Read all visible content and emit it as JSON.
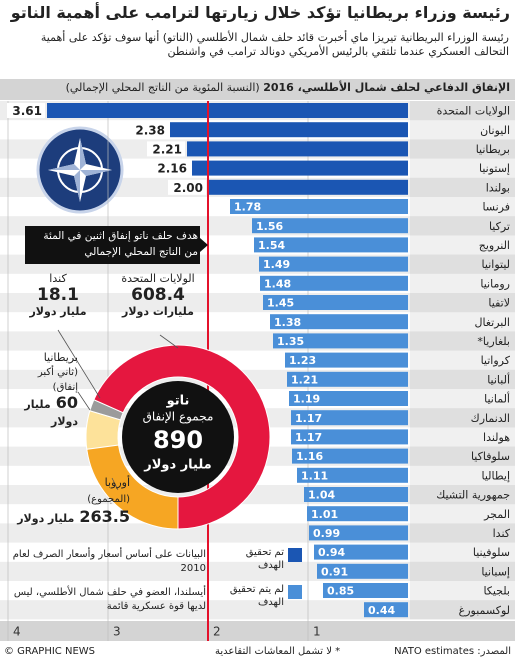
{
  "title": "رئيسة وزراء بريطانيا تؤكد خلال زيارتها لترامب على أهمية الناتو",
  "subtitle": "رئيسة الوزراء البريطانية تيريزا ماي أخبرت قائد حلف شمال الأطلسي (الناتو) أنها سوف تؤكد على أهمية التحالف العسكري عندما تلتقي بالرئيس الأمريكي دونالد ترامب في واشنطن",
  "notes": [
    "البيانات على أساس أسعار وأسعار الصرف لعام 2010",
    "أيسلندا، العضو في حلف شمال الأطلسي، ليس لديها قوة عسكرية قائمة"
  ],
  "footnote": "* لا تشمل المعاشات التقاعدية",
  "source": "المصدر: NATO estimates",
  "credit": "© GRAPHIC NEWS",
  "chart_data": [
    {
      "type": "bar",
      "orientation": "horizontal",
      "title": "الإنفاق الدفاعي لحلف شمال الأطلسي، 2016",
      "subtitle": "(النسبة المئوية من الناتج المحلي الإجمالي)",
      "categories": [
        "الولايات المتحدة",
        "اليونان",
        "بريطانيا",
        "إستونيا",
        "بولندا",
        "فرنسا",
        "تركيا",
        "النرويج",
        "ليتوانيا",
        "رومانيا",
        "لاتفيا",
        "البرتغال",
        "بلغاريا*",
        "كرواتيا",
        "ألبانيا",
        "ألمانيا",
        "الدنمارك",
        "هولندا",
        "سلوفاكيا",
        "إيطاليا",
        "جمهورية التشيك",
        "المجر",
        "كندا",
        "سلوفينيا",
        "إسبانيا",
        "بلجيكا",
        "لوكسمبورغ"
      ],
      "values": [
        3.61,
        2.38,
        2.21,
        2.16,
        2,
        1.78,
        1.56,
        1.54,
        1.49,
        1.48,
        1.45,
        1.38,
        1.35,
        1.23,
        1.21,
        1.19,
        1.17,
        1.17,
        1.16,
        1.11,
        1.04,
        1.01,
        0.99,
        0.94,
        0.91,
        0.85,
        0.44
      ],
      "value_labels": [
        "3.61",
        "2.38",
        "2.21",
        "2.16",
        "2.00",
        "1.78",
        "1.56",
        "1.54",
        "1.49",
        "1.48",
        "1.45",
        "1.38",
        "1.35",
        "1.23",
        "1.21",
        "1.19",
        "1.17",
        "1.17",
        "1.16",
        "1.11",
        "1.04",
        "1.01",
        "0.99",
        "0.94",
        "0.91",
        "0.85",
        "0.44"
      ],
      "xlim": [
        0,
        4
      ],
      "xticks": [
        4,
        3,
        2,
        1
      ],
      "target": 2,
      "target_color": "#e4112b",
      "target_label": "هدف حلف ناتو إنفاق اثنين في المئة من الناتج المحلي الإجمالي",
      "legend": [
        {
          "name": "تم تحقيق الهدف",
          "color": "#1b56b3"
        },
        {
          "name": "لم يتم تحقيق الهدف",
          "color": "#4a8fd8"
        }
      ]
    },
    {
      "type": "donut",
      "center_title": "ناتو",
      "center_subtitle": "مجموع الإنفاق",
      "total": 890,
      "total_unit": "مليار دولار",
      "series": [
        {
          "name": "الولايات المتحدة",
          "value": 608.4,
          "unit": "مليارات دولار",
          "color": "#e5173f"
        },
        {
          "name": "كندا",
          "value": 18.1,
          "unit": "مليار دولار",
          "color": "#9b9b9b"
        },
        {
          "name": "أوروبا",
          "note": "(المجموع)",
          "value": 263.5,
          "unit": "مليار دولار",
          "color": "#f6a623"
        }
      ],
      "part": {
        "name": "بريطانيا",
        "note": "(ثاني أكبر إنفاق)",
        "value": 60,
        "unit": "مليار دولار",
        "color": "#fde29a"
      }
    }
  ]
}
